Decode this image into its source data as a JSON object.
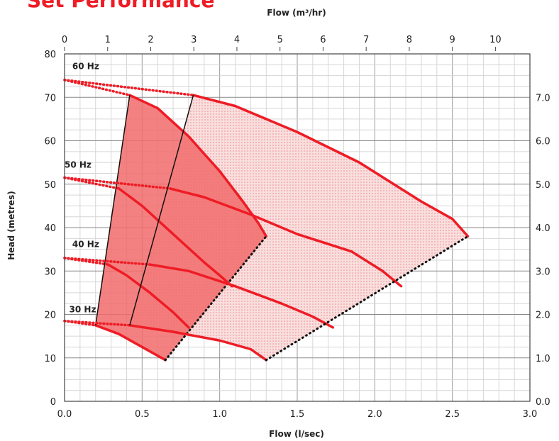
{
  "title": "Set Performance",
  "chart_data": {
    "type": "line",
    "title": "Set Performance",
    "xlabel": "Flow (l/sec)",
    "x2label": "Flow (m³/hr)",
    "ylabel": "Head (metres)",
    "xlim": [
      0,
      3.0
    ],
    "ylim": [
      0,
      80
    ],
    "y2lim": [
      0,
      8
    ],
    "x_ticks": [
      "0.0",
      "0.5",
      "1.0",
      "1.5",
      "2.0",
      "2.5",
      "3.0"
    ],
    "x2_ticks": [
      "0",
      "1",
      "2",
      "3",
      "4",
      "5",
      "6",
      "7",
      "8",
      "9",
      "10"
    ],
    "y_ticks": [
      "0",
      "10",
      "20",
      "30",
      "40",
      "50",
      "60",
      "70",
      "80"
    ],
    "y2_ticks": [
      "0.0",
      "1.0",
      "2.0",
      "3.0",
      "4.0",
      "5.0",
      "6.0",
      "7.0"
    ],
    "grid": true,
    "series_labels": [
      "60 Hz",
      "50 Hz",
      "40 Hz",
      "30 Hz"
    ],
    "pumps": [
      {
        "curves": [
          {
            "label": "60 Hz",
            "points": [
              [
                0.42,
                70.5
              ],
              [
                0.6,
                67.5
              ],
              [
                0.8,
                61
              ],
              [
                1.0,
                53
              ],
              [
                1.15,
                46
              ],
              [
                1.25,
                41
              ],
              [
                1.3,
                38
              ]
            ]
          },
          {
            "label": "50 Hz",
            "points": [
              [
                0.35,
                49
              ],
              [
                0.5,
                45
              ],
              [
                0.7,
                38.5
              ],
              [
                0.9,
                32
              ],
              [
                1.0,
                29
              ],
              [
                1.08,
                26.5
              ]
            ]
          },
          {
            "label": "40 Hz",
            "points": [
              [
                0.28,
                31.5
              ],
              [
                0.4,
                29
              ],
              [
                0.55,
                25
              ],
              [
                0.7,
                20.5
              ],
              [
                0.8,
                17
              ]
            ]
          },
          {
            "label": "30 Hz",
            "points": [
              [
                0.2,
                17.5
              ],
              [
                0.35,
                15.5
              ],
              [
                0.5,
                12.5
              ],
              [
                0.65,
                9.5
              ]
            ]
          }
        ],
        "left_boundary": [
          [
            0.2,
            17.5
          ],
          [
            0.42,
            70.5
          ]
        ],
        "shutoff_extrapolations": [
          [
            0,
            74
          ],
          [
            0,
            51.5
          ],
          [
            0,
            33
          ],
          [
            0,
            18.5
          ]
        ],
        "end_of_curve_dotted": [
          [
            0.65,
            9.5
          ],
          [
            1.3,
            38
          ]
        ]
      },
      {
        "curves": [
          {
            "label": "60 Hz",
            "points": [
              [
                0.83,
                70.5
              ],
              [
                1.1,
                68
              ],
              [
                1.5,
                62
              ],
              [
                1.9,
                55
              ],
              [
                2.3,
                46
              ],
              [
                2.5,
                42
              ],
              [
                2.6,
                38
              ]
            ]
          },
          {
            "label": "50 Hz",
            "points": [
              [
                0.68,
                49
              ],
              [
                0.9,
                47
              ],
              [
                1.2,
                43
              ],
              [
                1.5,
                38.5
              ],
              [
                1.85,
                34.5
              ],
              [
                2.05,
                30
              ],
              [
                2.17,
                26.5
              ]
            ]
          },
          {
            "label": "40 Hz",
            "points": [
              [
                0.55,
                31.5
              ],
              [
                0.8,
                30
              ],
              [
                1.1,
                26.5
              ],
              [
                1.4,
                22.5
              ],
              [
                1.6,
                19.5
              ],
              [
                1.73,
                17
              ]
            ]
          },
          {
            "label": "30 Hz",
            "points": [
              [
                0.42,
                17.5
              ],
              [
                0.7,
                16
              ],
              [
                1.0,
                14
              ],
              [
                1.2,
                12
              ],
              [
                1.3,
                9.5
              ]
            ]
          }
        ],
        "left_boundary": [
          [
            0.42,
            17.5
          ],
          [
            0.83,
            70.5
          ]
        ],
        "shutoff_extrapolations": [
          [
            0,
            74
          ],
          [
            0,
            51.5
          ],
          [
            0,
            33
          ],
          [
            0,
            18.5
          ]
        ],
        "end_of_curve_dotted": [
          [
            1.3,
            9.5
          ],
          [
            2.6,
            38
          ]
        ]
      }
    ],
    "colors": {
      "curve": "#ee1c25",
      "fill_inner": "#f26b6b",
      "fill_outer": "#f7c9c9",
      "boundary": "#111111"
    }
  }
}
